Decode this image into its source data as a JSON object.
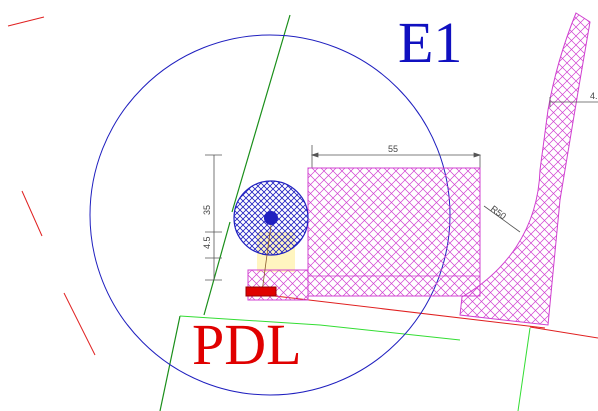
{
  "labels": {
    "e1": "E1",
    "pdl": "PDL"
  },
  "dimensions": {
    "width_top": "55",
    "height_left": "35",
    "height_left_small": "4.5",
    "radius": "R50",
    "edge_partial": "4."
  },
  "colors": {
    "circle": "#1f1fbf",
    "label_e1": "#1010c0",
    "label_pdl": "#e00000",
    "hatch": "#d040d0",
    "green_line": "#1a8f1a",
    "light_green_line": "#33dd33",
    "red_line": "#e02020",
    "dimension": "#555555",
    "pole_fill": "#2020c0"
  },
  "icons": {
    "pole": "hatched-circle-icon",
    "small_box": "red-rectangle-icon"
  }
}
